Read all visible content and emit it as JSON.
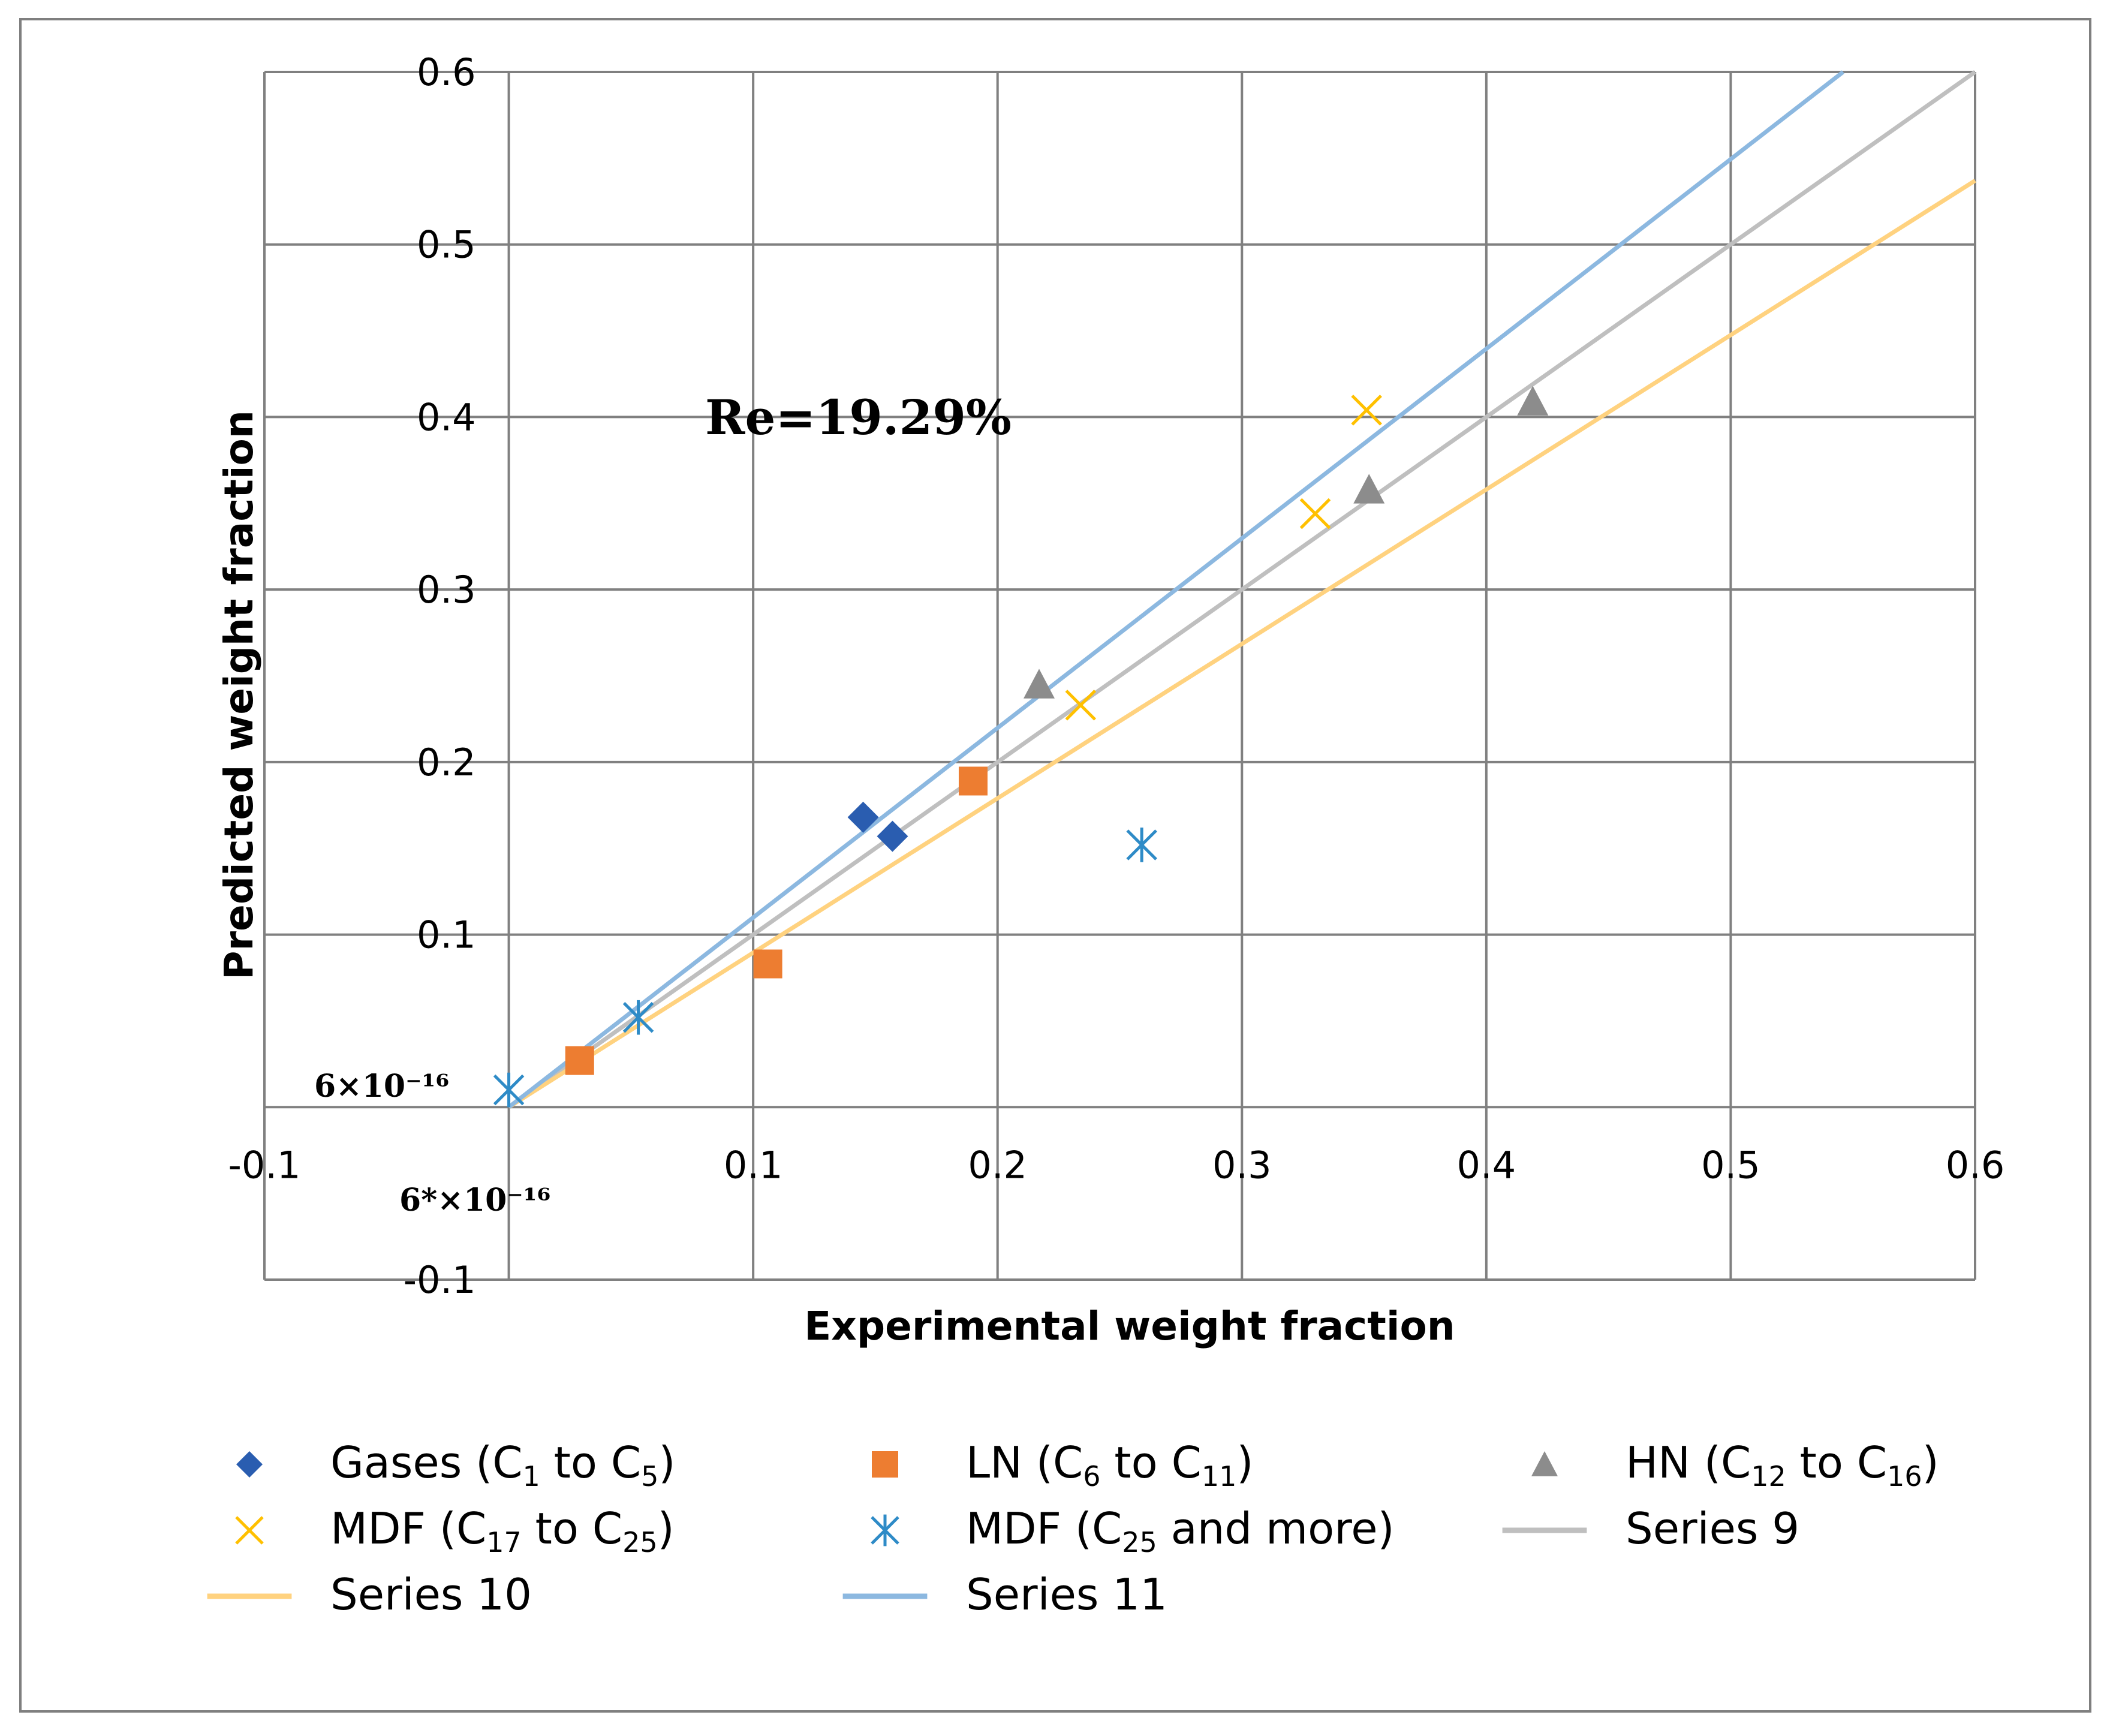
{
  "chart_data": {
    "type": "scatter",
    "xlabel": "Experimental weight fraction",
    "ylabel": "Predicted weight fraction",
    "xlim": [
      -0.1,
      0.6
    ],
    "ylim": [
      -0.1,
      0.6
    ],
    "x_ticks": [
      "-0.1",
      "0.1",
      "0.2",
      "0.3",
      "0.4",
      "0.5",
      "0.6"
    ],
    "y_ticks": [
      "0.6",
      "0.5",
      "0.4",
      "0.3",
      "0.2",
      "0.1",
      "-0.1"
    ],
    "grid": true,
    "legend_position": "bottom",
    "annotations": {
      "re": "Re=19.29%",
      "y_zero": "6×10⁻¹⁶",
      "x_zero": "6*×10⁻¹⁶"
    },
    "series": [
      {
        "name": "Gases (C1 to C5)",
        "name_parts": [
          "Gases (C",
          "1",
          " to C",
          "5",
          ")"
        ],
        "marker": "diamond",
        "color": "#2a5db0",
        "points": [
          [
            0.145,
            0.168
          ],
          [
            0.157,
            0.157
          ]
        ]
      },
      {
        "name": "LN (C6 to C11)",
        "name_parts": [
          "LN (C",
          "6",
          " to C",
          "11",
          ")"
        ],
        "marker": "square",
        "color": "#ed7d31",
        "points": [
          [
            0.029,
            0.027
          ],
          [
            0.106,
            0.083
          ],
          [
            0.19,
            0.189
          ]
        ]
      },
      {
        "name": "HN (C12 to C16)",
        "name_parts": [
          "HN (C",
          "12",
          " to C",
          "16",
          ")"
        ],
        "marker": "triangle",
        "color": "#8c8c8c",
        "points": [
          [
            0.217,
            0.245
          ],
          [
            0.352,
            0.358
          ],
          [
            0.419,
            0.409
          ]
        ]
      },
      {
        "name": "MDF (C17 to C25)",
        "name_parts": [
          "MDF (C",
          "17",
          " to C",
          "25",
          ")"
        ],
        "marker": "x",
        "color": "#ffc000",
        "points": [
          [
            0.234,
            0.233
          ],
          [
            0.33,
            0.344
          ],
          [
            0.351,
            0.404
          ]
        ]
      },
      {
        "name": "MDF (C25 and more)",
        "name_parts": [
          "MDF (C",
          "25",
          " and more)",
          "",
          ""
        ],
        "marker": "star",
        "color": "#2e8bc7",
        "points": [
          [
            0.0,
            0.01
          ],
          [
            0.053,
            0.052
          ],
          [
            0.259,
            0.152
          ]
        ]
      },
      {
        "name": "Series 9",
        "name_parts": [
          "Series 9",
          "",
          "",
          "",
          ""
        ],
        "marker": "line",
        "color": "#bfbfbf",
        "line": [
          [
            0.0,
            0.0
          ],
          [
            0.6,
            0.6
          ]
        ]
      },
      {
        "name": "Series 10",
        "name_parts": [
          "Series 10",
          "",
          "",
          "",
          ""
        ],
        "marker": "line",
        "color": "#ffd27f",
        "line": [
          [
            0.0,
            0.0
          ],
          [
            0.6,
            0.537
          ]
        ]
      },
      {
        "name": "Series 11",
        "name_parts": [
          "Series 11",
          "",
          "",
          "",
          ""
        ],
        "marker": "line",
        "color": "#8cb8e0",
        "line": [
          [
            0.0,
            0.0
          ],
          [
            0.546,
            0.6
          ]
        ]
      }
    ]
  }
}
